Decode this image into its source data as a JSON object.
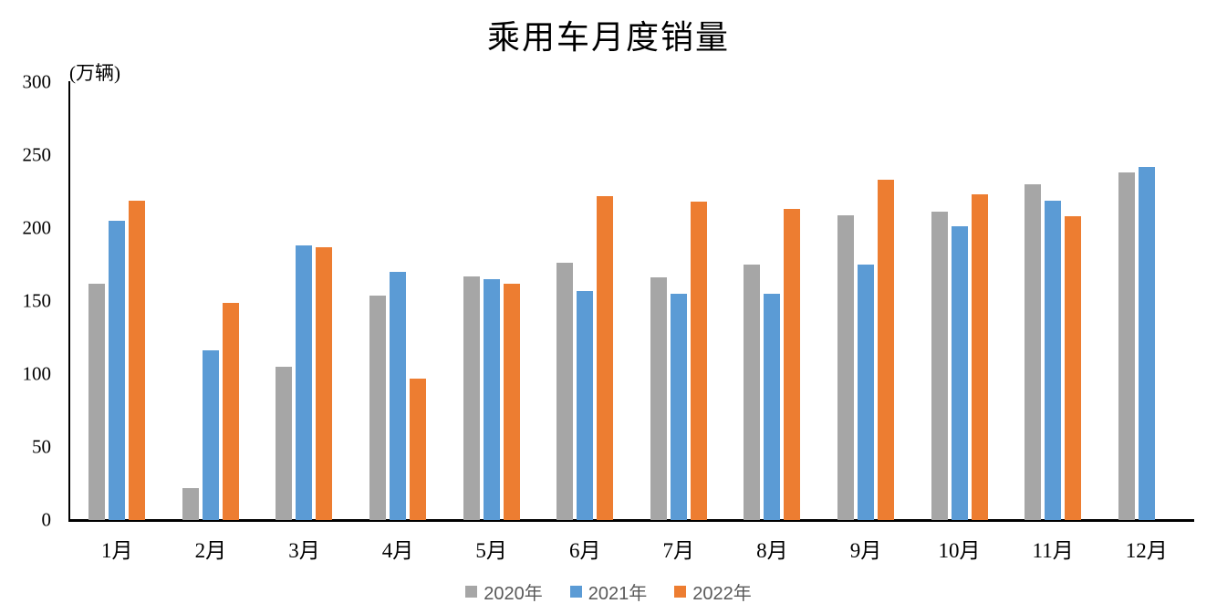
{
  "chart_data": {
    "type": "bar",
    "title": "乘用车月度销量",
    "unit_label": "(万辆)",
    "categories": [
      "1月",
      "2月",
      "3月",
      "4月",
      "5月",
      "6月",
      "7月",
      "8月",
      "9月",
      "10月",
      "11月",
      "12月"
    ],
    "series": [
      {
        "name": "2020年",
        "color": "#A6A6A6",
        "values": [
          162,
          22,
          105,
          154,
          167,
          176,
          166,
          175,
          209,
          211,
          230,
          238
        ]
      },
      {
        "name": "2021年",
        "color": "#5B9BD5",
        "values": [
          205,
          116,
          188,
          170,
          165,
          157,
          155,
          155,
          175,
          201,
          219,
          242
        ]
      },
      {
        "name": "2022年",
        "color": "#ED7D31",
        "values": [
          219,
          149,
          187,
          97,
          162,
          222,
          218,
          213,
          233,
          223,
          208,
          null
        ]
      }
    ],
    "xlabel": "",
    "ylabel": "",
    "ylim": [
      0,
      300
    ],
    "yticks": [
      0,
      50,
      100,
      150,
      200,
      250,
      300
    ],
    "grid": false,
    "legend_position": "bottom",
    "axis_color": "#000000",
    "legend_text_color": "#595959",
    "background_color": "#ffffff"
  }
}
